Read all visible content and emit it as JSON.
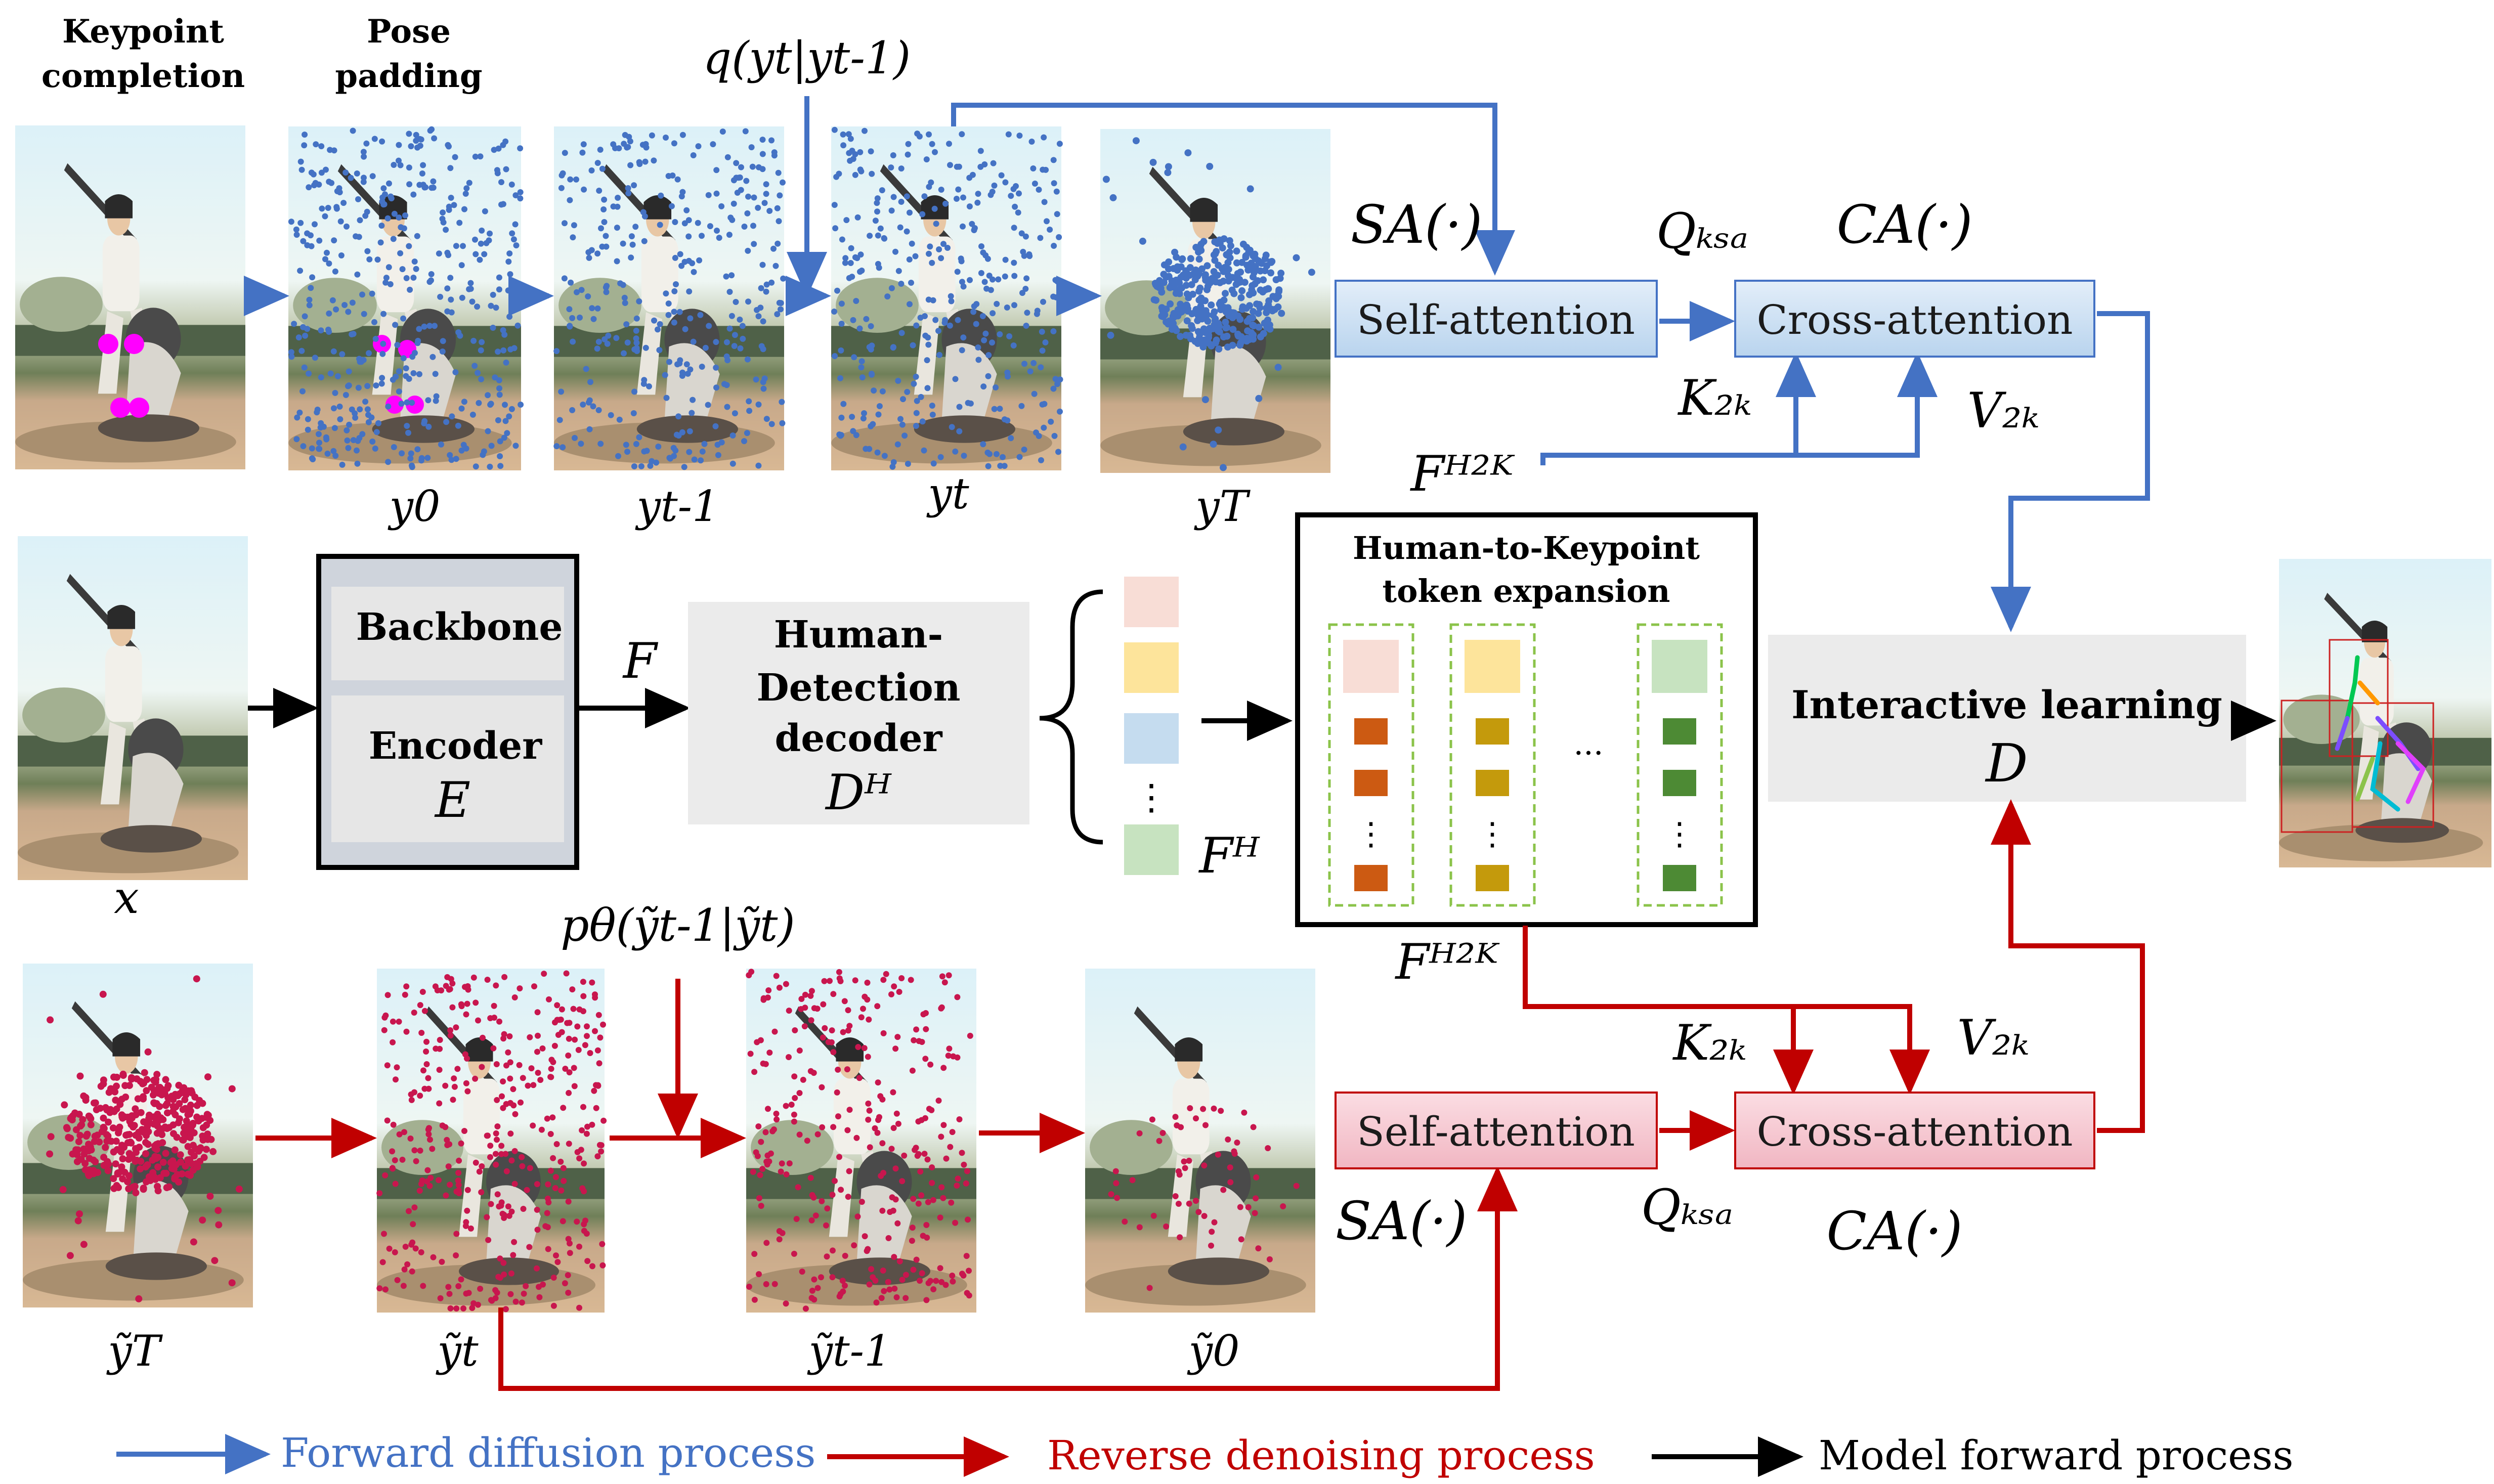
{
  "colors": {
    "forward": "#4472c4",
    "reverse": "#c00000",
    "model": "#000000",
    "blue_box_fill": "#cfe2f3",
    "pink_box_fill": "#f4c7cf",
    "grey_box_fill": "#ebebeb",
    "query_token": "#f8ddd6",
    "token_yellow": "#fde49b",
    "token_blue": "#c5dcef",
    "token_green": "#c7e3c0",
    "kp_orange": "#cc5a12",
    "kp_gold": "#c49a0c",
    "kp_green": "#4d8a34",
    "dashed_green": "#8bc34a"
  },
  "top_headers": {
    "keypoint_completion": [
      "Keypoint",
      "completion"
    ],
    "pose_padding": [
      "Pose",
      "padding"
    ]
  },
  "forward_row": {
    "op": "q(yt|yt-1)",
    "images": [
      "y0",
      "yt-1",
      "yt",
      "yT"
    ],
    "self_attention": "Self-attention",
    "cross_attention": "Cross-attention",
    "sa": "SA(·)",
    "ca": "CA(·)",
    "q": "Q_K_SA",
    "k": "K_F_H2K",
    "v": "V_F_H2K",
    "f_h2k": "F_H2K"
  },
  "middle_row": {
    "input": "x",
    "backbone": "Backbone",
    "encoder": "Encoder",
    "encoder_symbol": "E",
    "feature": "F",
    "detector": [
      "Human-",
      "Detection",
      "decoder"
    ],
    "detector_symbol": "D_H",
    "human_tokens": "F_H",
    "expansion_title": [
      "Human-to-Keypoint",
      "token expansion"
    ],
    "ellipsis": "···",
    "interactive": "Interactive learning",
    "interactive_symbol": "D"
  },
  "reverse_row": {
    "op": "pθ(ỹt-1|ỹt)",
    "images": [
      "ỹT",
      "ỹt",
      "ỹt-1",
      "ỹ0"
    ],
    "self_attention": "Self-attention",
    "cross_attention": "Cross-attention",
    "sa": "SA(·)",
    "ca": "CA(·)",
    "q": "Q_K_SA",
    "k": "K_F_H2K",
    "v": "V_F_H2K",
    "f_h2k": "F_H2K"
  },
  "legend": {
    "forward": "Forward diffusion process",
    "reverse": "Reverse denoising process",
    "model": "Model forward process"
  }
}
